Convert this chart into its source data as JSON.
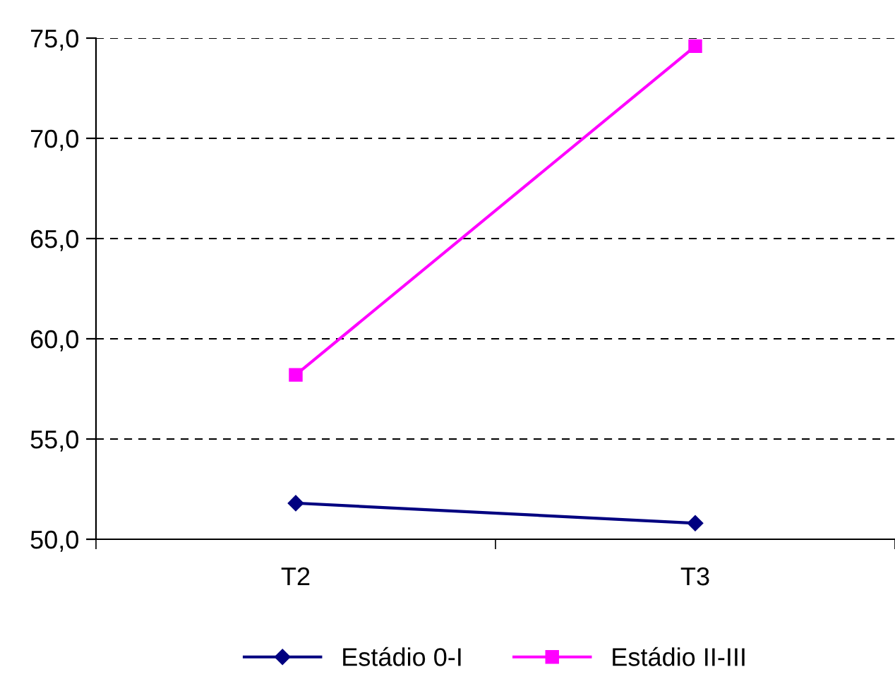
{
  "chart_data": {
    "type": "line",
    "categories": [
      "T2",
      "T3"
    ],
    "series": [
      {
        "name": "Estádio 0-I",
        "color": "#000080",
        "values": [
          51.8,
          50.8
        ],
        "marker": "diamond"
      },
      {
        "name": "Estádio II-III",
        "color": "#ff00ff",
        "values": [
          58.2,
          74.6
        ],
        "marker": "square"
      }
    ],
    "ylim": [
      50,
      75
    ],
    "yticks": [
      {
        "value": 50,
        "label": "50,0"
      },
      {
        "value": 55,
        "label": "55,0"
      },
      {
        "value": 60,
        "label": "60,0"
      },
      {
        "value": 65,
        "label": "65,0"
      },
      {
        "value": 70,
        "label": "70,0"
      },
      {
        "value": 75,
        "label": "75,0"
      }
    ],
    "grid": "y",
    "legend": "bottom",
    "line_style": "solid"
  }
}
